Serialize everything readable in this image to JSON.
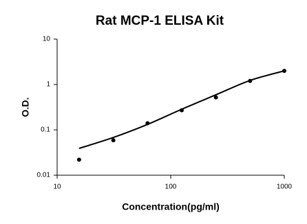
{
  "chart_data": {
    "type": "scatter",
    "title": "Rat MCP-1 ELISA Kit",
    "x_label": "Concentration(pg/ml)",
    "y_label": "O.D.",
    "log_x": true,
    "log_y": true,
    "xlim": [
      10,
      1000
    ],
    "ylim": [
      0.01,
      10
    ],
    "xticks": [
      10,
      100,
      1000
    ],
    "yticks": [
      0.01,
      0.1,
      1,
      10
    ],
    "color": "#000000",
    "x": [
      15.6,
      31.25,
      62.5,
      125,
      250,
      500,
      1000
    ],
    "values": [
      0.022,
      0.059,
      0.14,
      0.27,
      0.52,
      1.2,
      2.0
    ],
    "fit": {
      "x": [
        15.6,
        31.25,
        62.5,
        125,
        250,
        500,
        1000
      ],
      "y": [
        0.039,
        0.068,
        0.132,
        0.285,
        0.593,
        1.23,
        2.0
      ]
    }
  }
}
